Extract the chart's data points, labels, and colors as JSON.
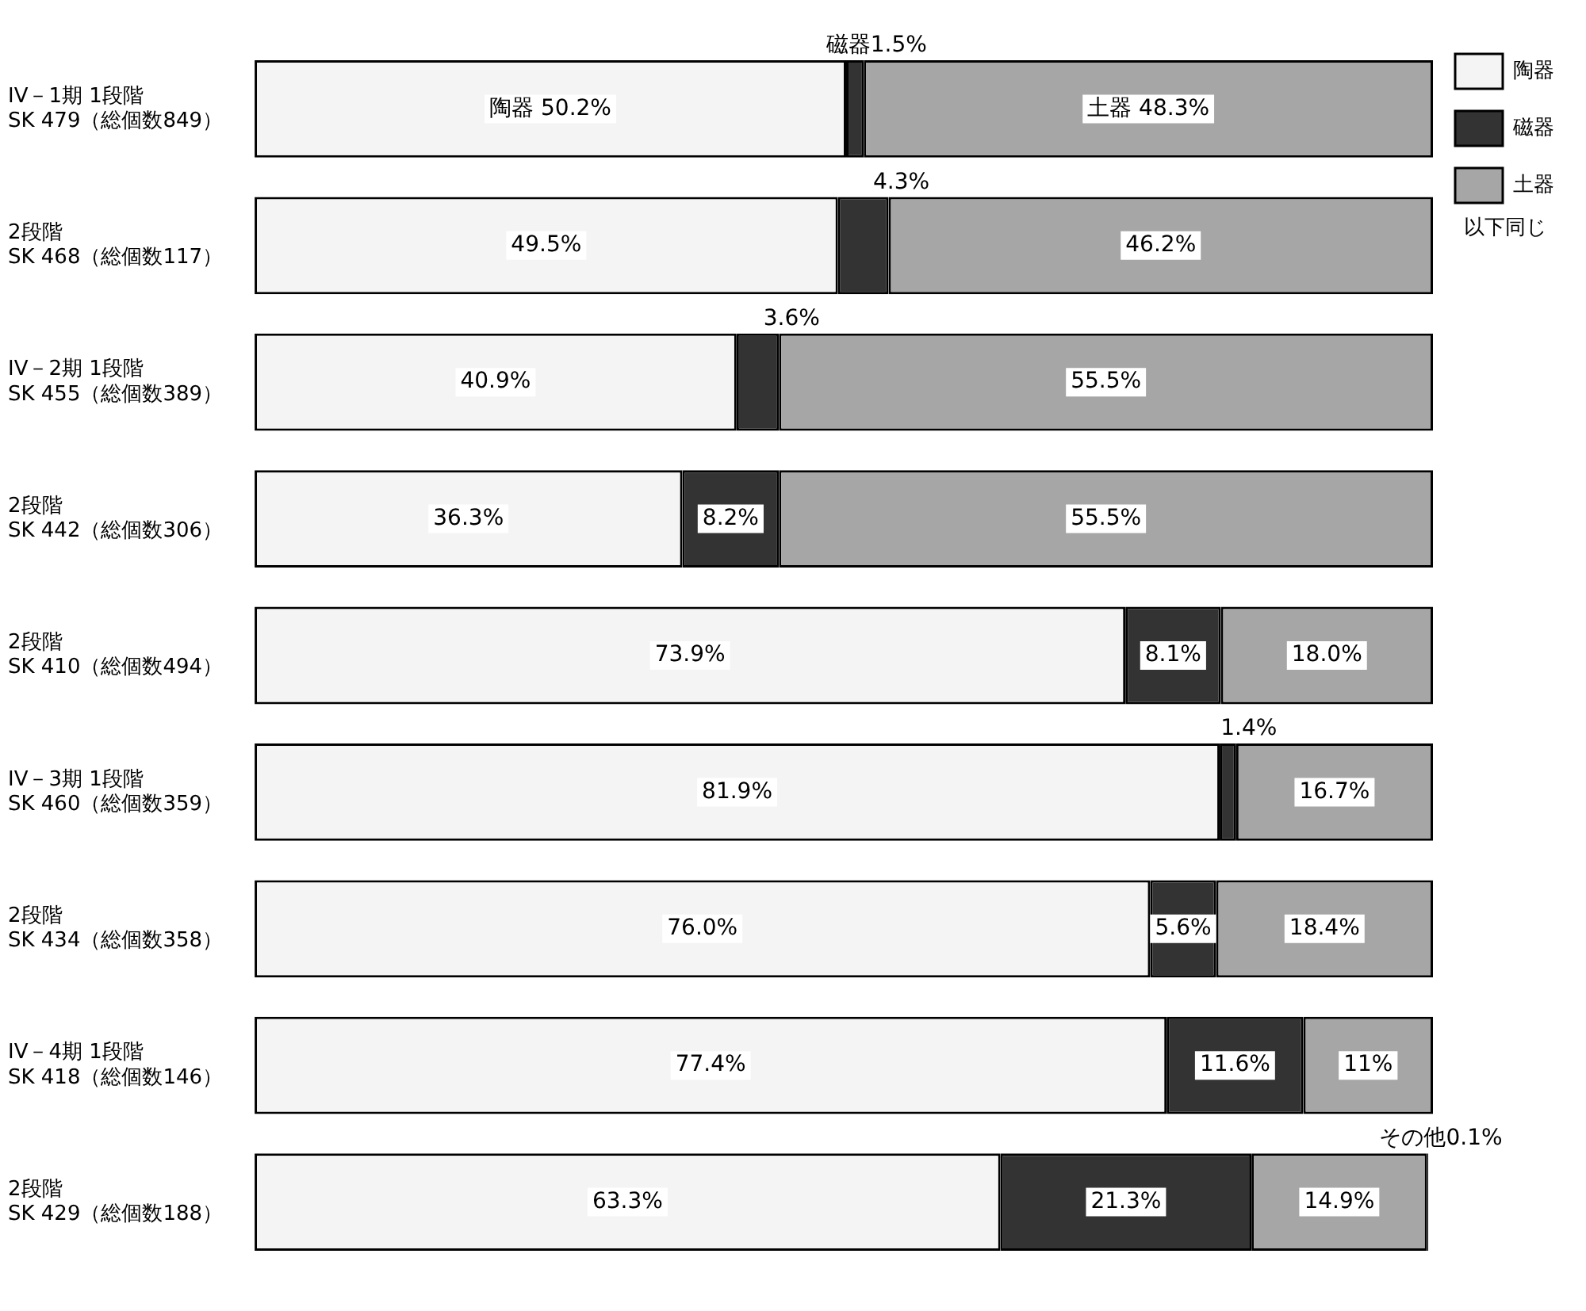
{
  "chart_data": {
    "type": "bar",
    "orientation": "horizontal",
    "stacked": true,
    "categories": [
      "IV－1期 1段階\nSK 479（総個数849）",
      "2段階\nSK 468（総個数117）",
      "IV－2期 1段階\nSK 455（総個数389）",
      "2段階\nSK 442（総個数306）",
      "2段階\nSK 410（総個数494）",
      "IV－3期 1段階\nSK 460（総個数359）",
      "2段階\nSK 434（総個数358）",
      "IV－4期 1段階\nSK 418（総個数146）",
      "2段階\nSK 429（総個数188）"
    ],
    "series": [
      {
        "name": "陶器",
        "color": "#f4f4f4",
        "values": [
          50.2,
          49.5,
          40.9,
          36.3,
          73.9,
          81.9,
          76.0,
          77.4,
          63.3
        ],
        "value_labels": [
          "陶器 50.2%",
          "49.5%",
          "40.9%",
          "36.3%",
          "73.9%",
          "81.9%",
          "76.0%",
          "77.4%",
          "63.3%"
        ]
      },
      {
        "name": "磁器",
        "color": "#333333",
        "values": [
          1.5,
          4.3,
          3.6,
          8.2,
          8.1,
          1.4,
          5.6,
          11.6,
          21.3
        ],
        "value_labels": [
          "磁器1.5%",
          "4.3%",
          "3.6%",
          "8.2%",
          "8.1%",
          "1.4%",
          "5.6%",
          "11.6%",
          "21.3%"
        ]
      },
      {
        "name": "土器",
        "color": "#a6a6a6",
        "values": [
          48.3,
          46.2,
          55.5,
          55.5,
          18.0,
          16.7,
          18.4,
          11,
          14.9
        ],
        "value_labels": [
          "土器 48.3%",
          "46.2%",
          "55.5%",
          "55.5%",
          "18.0%",
          "16.7%",
          "18.4%",
          "11%",
          "14.9%"
        ]
      },
      {
        "color": "#000000",
        "values": [
          null,
          null,
          null,
          null,
          null,
          null,
          null,
          null,
          0.1
        ],
        "value_labels": [
          null,
          null,
          null,
          null,
          null,
          null,
          null,
          null,
          "その他0.1%"
        ]
      }
    ],
    "xlim": [
      0,
      100
    ],
    "tick_labels": "y",
    "grid": false,
    "legend": "top right",
    "annotations": [
      "以下同じ"
    ]
  }
}
